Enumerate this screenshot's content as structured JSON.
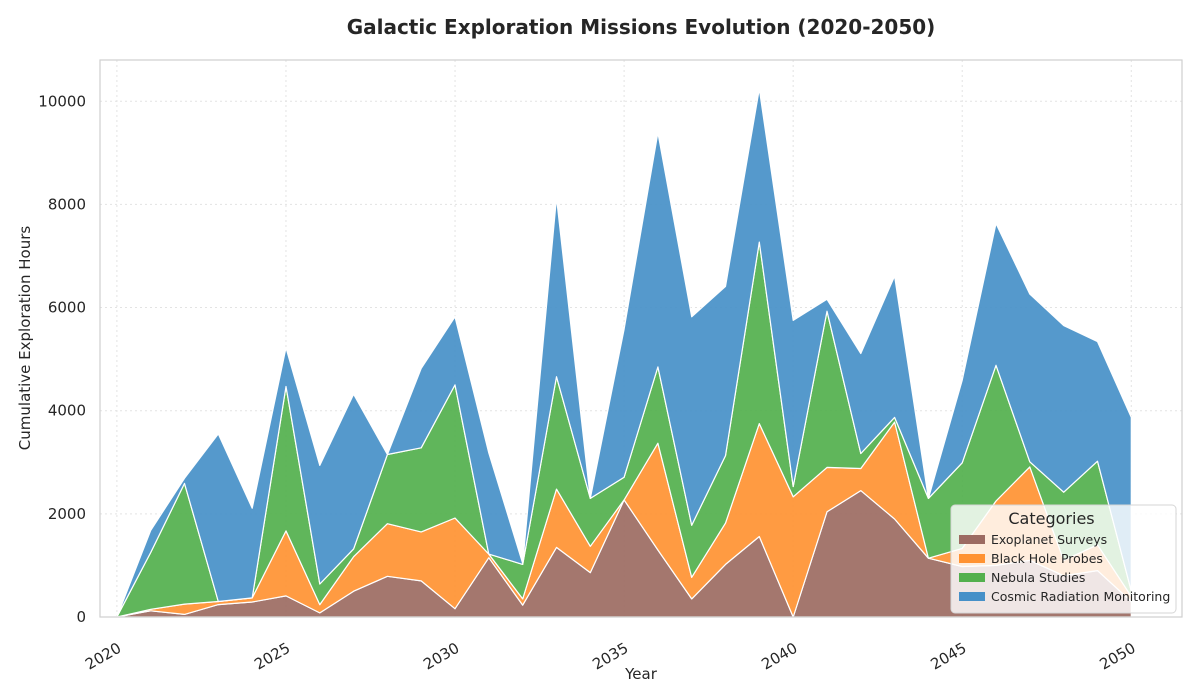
{
  "chart_data": {
    "type": "area",
    "stacked": true,
    "title": "Galactic Exploration Missions Evolution (2020-2050)",
    "xlabel": "Year",
    "ylabel": "Cumulative Exploration Hours",
    "x": [
      2020,
      2021,
      2022,
      2023,
      2024,
      2025,
      2026,
      2027,
      2028,
      2029,
      2030,
      2031,
      2032,
      2033,
      2034,
      2035,
      2036,
      2037,
      2038,
      2039,
      2040,
      2041,
      2042,
      2043,
      2044,
      2045,
      2046,
      2047,
      2048,
      2049,
      2050
    ],
    "xticks": [
      2020,
      2025,
      2030,
      2035,
      2040,
      2045,
      2050
    ],
    "xlim": [
      2019.5,
      2051.5
    ],
    "yticks": [
      0,
      2000,
      4000,
      6000,
      8000,
      10000
    ],
    "ylim": [
      0,
      10800
    ],
    "grid": true,
    "series": [
      {
        "name": "Exoplanet Surveys",
        "color": "#9c6b62",
        "values": [
          0,
          120,
          50,
          240,
          290,
          410,
          80,
          500,
          790,
          700,
          160,
          1150,
          230,
          1350,
          860,
          2270,
          1300,
          350,
          1020,
          1560,
          0,
          2040,
          2450,
          1900,
          1140,
          980,
          1000,
          1100,
          800,
          900,
          300
        ]
      },
      {
        "name": "Black Hole Probes",
        "color": "#ff9232",
        "values": [
          0,
          30,
          200,
          60,
          80,
          1260,
          160,
          670,
          1020,
          950,
          1760,
          70,
          120,
          1130,
          510,
          0,
          2070,
          420,
          800,
          2190,
          2330,
          860,
          430,
          1880,
          0,
          350,
          1250,
          1810,
          300,
          500,
          100
        ]
      },
      {
        "name": "Nebula Studies",
        "color": "#53b04d",
        "values": [
          0,
          1100,
          2340,
          0,
          0,
          2800,
          400,
          150,
          1340,
          1630,
          2580,
          0,
          670,
          2180,
          930,
          440,
          1480,
          1010,
          1310,
          3520,
          200,
          3030,
          290,
          90,
          1160,
          1660,
          2630,
          100,
          1320,
          1620,
          100
        ]
      },
      {
        "name": "Cosmic Radiation Monitoring",
        "color": "#4690c8",
        "values": [
          0,
          430,
          100,
          3250,
          1740,
          750,
          2300,
          3000,
          0,
          1540,
          1320,
          1960,
          20,
          3470,
          0,
          2870,
          4540,
          4040,
          3280,
          2970,
          3220,
          230,
          1940,
          2740,
          0,
          1600,
          2750,
          3250,
          3230,
          2320,
          3370
        ]
      }
    ],
    "legend": {
      "title": "Categories",
      "position": "lower-right"
    }
  }
}
